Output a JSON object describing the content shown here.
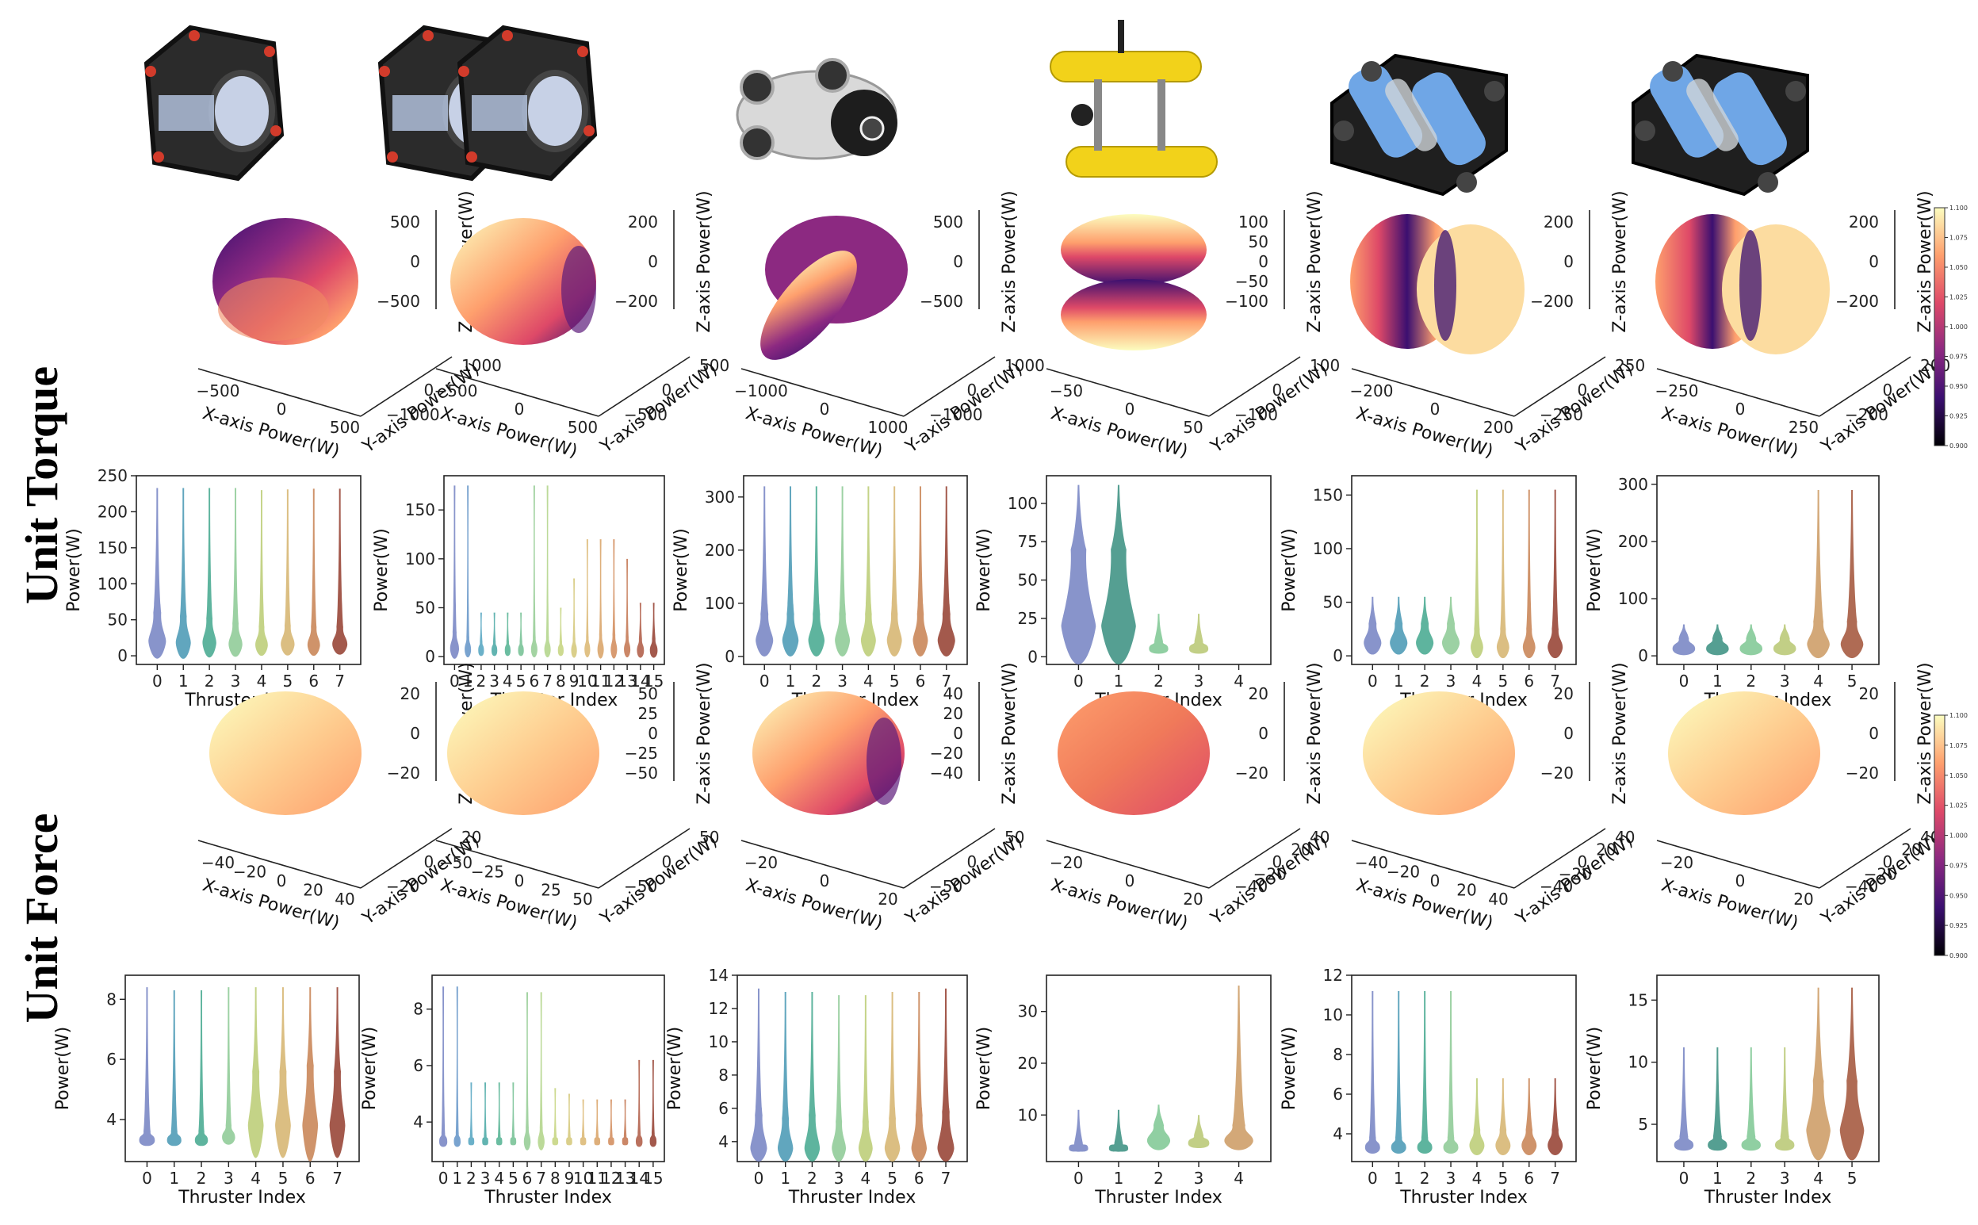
{
  "row_labels": [
    "Unit Torque",
    "Unit Force"
  ],
  "robot_icons": [
    "cube-vehicle-icon",
    "double-cube-vehicle-icon",
    "white-rov-icon",
    "yellow-auv-icon",
    "bluerov-heavy-icon",
    "bluerov-icon"
  ],
  "colormap": {
    "stops": [
      "#000004",
      "#3b0f70",
      "#8c2981",
      "#de4968",
      "#fe9f6d",
      "#fcfdbf"
    ],
    "ticks": [
      "1.100",
      "1.075",
      "1.050",
      "1.025",
      "1.000",
      "0.975",
      "0.950",
      "0.925",
      "0.900"
    ]
  },
  "thruster_colors": {
    "4": [
      "#6b86c4",
      "#2f9a77",
      "#b7cf6a",
      "#d7a85a",
      "#a56d3a"
    ],
    "5": [
      "#6e7cc0",
      "#2f8a7a",
      "#77c48e",
      "#b4c56b",
      "#c9955a",
      "#9e4a2e"
    ],
    "6": [
      "#6e7cc0",
      "#2f8a7a",
      "#77c48e",
      "#b4c56b",
      "#c9955a",
      "#9e4a2e"
    ],
    "8": [
      "#6e7cc0",
      "#3e93b0",
      "#3aa489",
      "#86c78f",
      "#b7c96c",
      "#d3b067",
      "#c47b49",
      "#8f3424"
    ],
    "16": [
      "#6e7cc0",
      "#5b8fc4",
      "#4aa0bd",
      "#3fa3a0",
      "#4aaf8c",
      "#6dbd8d",
      "#8fc98e",
      "#add282",
      "#c2d277",
      "#d2c571",
      "#d9b36a",
      "#d79e5e",
      "#cf8552",
      "#c06c46",
      "#ab523a",
      "#8f3424"
    ]
  },
  "chart_data": [
    {
      "type": "surface3d",
      "row": "Unit Torque",
      "vehicle": 1,
      "pattern": "top-dark",
      "xlabel": "X-axis Power(W)",
      "ylabel": "Y-axis Power(W)",
      "zlabel": "Z-axis Power(W)",
      "xticks": [
        "−500",
        "0",
        "500"
      ],
      "yticks": [
        "1000",
        "0",
        "−1000"
      ],
      "zticks": [
        "500",
        "0",
        "−500"
      ]
    },
    {
      "type": "surface3d",
      "row": "Unit Torque",
      "vehicle": 2,
      "pattern": "right-dark",
      "xlabel": "X-axis Power(W)",
      "ylabel": "Y-axis Power(W)",
      "zlabel": "Z-axis Power(W)",
      "xticks": [
        "−500",
        "0",
        "500"
      ],
      "yticks": [
        "500",
        "0",
        "−500"
      ],
      "zticks": [
        "200",
        "0",
        "−200"
      ]
    },
    {
      "type": "surface3d",
      "row": "Unit Torque",
      "vehicle": 3,
      "pattern": "lobes-diagonal",
      "xlabel": "X-axis Power(W)",
      "ylabel": "Y-axis Power(W)",
      "zlabel": "Z-axis Power(W)",
      "xticks": [
        "−1000",
        "0",
        "1000"
      ],
      "yticks": [
        "1000",
        "0",
        "−1000"
      ],
      "zticks": [
        "500",
        "0",
        "−500"
      ]
    },
    {
      "type": "surface3d",
      "row": "Unit Torque",
      "vehicle": 4,
      "pattern": "pinched-horizontal",
      "xlabel": "X-axis Power(W)",
      "ylabel": "Y-axis Power(W)",
      "zlabel": "Z-axis Power(W)",
      "xticks": [
        "−50",
        "0",
        "50"
      ],
      "yticks": [
        "100",
        "0",
        "−100"
      ],
      "zticks": [
        "100",
        "50",
        "0",
        "−50",
        "−100"
      ]
    },
    {
      "type": "surface3d",
      "row": "Unit Torque",
      "vehicle": 5,
      "pattern": "lobes-split",
      "xlabel": "X-axis Power(W)",
      "ylabel": "Y-axis Power(W)",
      "zlabel": "Z-axis Power(W)",
      "xticks": [
        "−200",
        "0",
        "200"
      ],
      "yticks": [
        "250",
        "0",
        "−250"
      ],
      "zticks": [
        "200",
        "0",
        "−200"
      ]
    },
    {
      "type": "surface3d",
      "row": "Unit Torque",
      "vehicle": 6,
      "pattern": "lobes-split-wide",
      "xlabel": "X-axis Power(W)",
      "ylabel": "Y-axis Power(W)",
      "zlabel": "Z-axis Power(W)",
      "xticks": [
        "−250",
        "0",
        "250"
      ],
      "yticks": [
        "200",
        "0",
        "−200"
      ],
      "zticks": [
        "200",
        "0",
        "−200"
      ]
    },
    {
      "type": "violin",
      "row": "Unit Torque",
      "vehicle": 1,
      "xlabel": "Thruster Index",
      "ylabel": "Power(W)",
      "categories": [
        "0",
        "1",
        "2",
        "3",
        "4",
        "5",
        "6",
        "7"
      ],
      "yticks": [
        0,
        50,
        100,
        150,
        200,
        250
      ],
      "ylim": [
        -12,
        250
      ],
      "max": [
        233,
        233,
        233,
        233,
        230,
        231,
        232,
        232
      ],
      "median": [
        60,
        55,
        52,
        45,
        40,
        42,
        40,
        40
      ],
      "q1": [
        20,
        18,
        18,
        16,
        15,
        16,
        15,
        16
      ],
      "widths": [
        0.7,
        0.6,
        0.55,
        0.55,
        0.5,
        0.55,
        0.5,
        0.6
      ]
    },
    {
      "type": "violin",
      "row": "Unit Torque",
      "vehicle": 2,
      "xlabel": "Thruster Index",
      "ylabel": "Power(W)",
      "categories": [
        "0",
        "1",
        "2",
        "3",
        "4",
        "5",
        "6",
        "7",
        "8",
        "9",
        "10",
        "11",
        "12",
        "13",
        "14",
        "15"
      ],
      "yticks": [
        0,
        50,
        100,
        150
      ],
      "ylim": [
        -8,
        185
      ],
      "max": [
        175,
        175,
        45,
        45,
        45,
        45,
        175,
        175,
        50,
        80,
        120,
        120,
        120,
        100,
        55,
        55
      ],
      "median": [
        25,
        20,
        15,
        15,
        15,
        15,
        20,
        20,
        15,
        18,
        20,
        22,
        22,
        20,
        18,
        18
      ],
      "q1": [
        8,
        7,
        6,
        6,
        6,
        6,
        7,
        7,
        6,
        6,
        7,
        7,
        7,
        7,
        6,
        6
      ],
      "widths": [
        0.7,
        0.5,
        0.45,
        0.45,
        0.45,
        0.45,
        0.5,
        0.5,
        0.45,
        0.45,
        0.45,
        0.5,
        0.5,
        0.5,
        0.55,
        0.6
      ]
    },
    {
      "type": "violin",
      "row": "Unit Torque",
      "vehicle": 3,
      "xlabel": "Thruster Index",
      "ylabel": "Power(W)",
      "categories": [
        "0",
        "1",
        "2",
        "3",
        "4",
        "5",
        "6",
        "7"
      ],
      "yticks": [
        0,
        100,
        200,
        300
      ],
      "ylim": [
        -15,
        340
      ],
      "max": [
        320,
        320,
        320,
        320,
        320,
        320,
        320,
        320
      ],
      "median": [
        80,
        80,
        80,
        80,
        80,
        80,
        80,
        80
      ],
      "q1": [
        30,
        30,
        30,
        30,
        30,
        30,
        30,
        30
      ],
      "widths": [
        0.7,
        0.65,
        0.65,
        0.6,
        0.6,
        0.6,
        0.6,
        0.7
      ]
    },
    {
      "type": "violin",
      "row": "Unit Torque",
      "vehicle": 4,
      "xlabel": "Thruster Index",
      "ylabel": "Power(W)",
      "categories": [
        "0",
        "1",
        "2",
        "3",
        "4"
      ],
      "yticks": [
        0,
        25,
        50,
        75,
        100
      ],
      "ylim": [
        -5,
        118
      ],
      "max": [
        112,
        112,
        28,
        28,
        0
      ],
      "median": [
        70,
        70,
        10,
        10,
        0
      ],
      "q1": [
        20,
        20,
        5,
        5,
        0
      ],
      "widths": [
        0.9,
        0.9,
        0.5,
        0.5,
        0
      ]
    },
    {
      "type": "violin",
      "row": "Unit Torque",
      "vehicle": 5,
      "xlabel": "Thruster Index",
      "ylabel": "Power(W)",
      "categories": [
        "0",
        "1",
        "2",
        "3",
        "4",
        "5",
        "6",
        "7"
      ],
      "yticks": [
        0,
        50,
        100,
        150
      ],
      "ylim": [
        -8,
        168
      ],
      "max": [
        55,
        55,
        55,
        55,
        155,
        155,
        155,
        155
      ],
      "median": [
        30,
        30,
        30,
        30,
        25,
        25,
        25,
        25
      ],
      "q1": [
        12,
        12,
        12,
        12,
        8,
        8,
        8,
        8
      ],
      "widths": [
        0.7,
        0.7,
        0.7,
        0.7,
        0.5,
        0.5,
        0.5,
        0.6
      ]
    },
    {
      "type": "violin",
      "row": "Unit Torque",
      "vehicle": 6,
      "xlabel": "Thruster Index",
      "ylabel": "Power(W)",
      "categories": [
        "0",
        "1",
        "2",
        "3",
        "4",
        "5"
      ],
      "yticks": [
        0,
        100,
        200,
        300
      ],
      "ylim": [
        -15,
        315
      ],
      "max": [
        55,
        55,
        55,
        55,
        290,
        290
      ],
      "median": [
        30,
        30,
        30,
        30,
        60,
        60
      ],
      "q1": [
        12,
        12,
        12,
        12,
        20,
        20
      ],
      "widths": [
        0.7,
        0.7,
        0.7,
        0.7,
        0.7,
        0.7
      ]
    },
    {
      "type": "surface3d",
      "row": "Unit Force",
      "vehicle": 1,
      "pattern": "light-sphere",
      "xlabel": "X-axis Power(W)",
      "ylabel": "Y-axis Power(W)",
      "zlabel": "Z-axis Power(W)",
      "xticks": [
        "−40",
        "−20",
        "0",
        "20",
        "40"
      ],
      "yticks": [
        "20",
        "0",
        "−20"
      ],
      "zticks": [
        "20",
        "0",
        "−20"
      ]
    },
    {
      "type": "surface3d",
      "row": "Unit Force",
      "vehicle": 2,
      "pattern": "light-sphere",
      "xlabel": "X-axis Power(W)",
      "ylabel": "Y-axis Power(W)",
      "zlabel": "Z-axis Power(W)",
      "xticks": [
        "−50",
        "−25",
        "0",
        "25",
        "50"
      ],
      "yticks": [
        "50",
        "0",
        "−50"
      ],
      "zticks": [
        "50",
        "25",
        "0",
        "−25",
        "−50"
      ]
    },
    {
      "type": "surface3d",
      "row": "Unit Force",
      "vehicle": 3,
      "pattern": "right-dark",
      "xlabel": "X-axis Power(W)",
      "ylabel": "Y-axis Power(W)",
      "zlabel": "Z-axis Power(W)",
      "xticks": [
        "−20",
        "0",
        "20"
      ],
      "yticks": [
        "50",
        "0",
        "−50"
      ],
      "zticks": [
        "40",
        "20",
        "0",
        "−20",
        "−40"
      ]
    },
    {
      "type": "surface3d",
      "row": "Unit Force",
      "vehicle": 4,
      "pattern": "warm-sphere",
      "xlabel": "X-axis Power(W)",
      "ylabel": "Y-axis Power(W)",
      "zlabel": "Z-axis Power(W)",
      "xticks": [
        "−20",
        "0",
        "20"
      ],
      "yticks": [
        "40",
        "20",
        "0",
        "−20",
        "−40"
      ],
      "zticks": [
        "20",
        "0",
        "−20"
      ]
    },
    {
      "type": "surface3d",
      "row": "Unit Force",
      "vehicle": 5,
      "pattern": "light-sphere",
      "xlabel": "X-axis Power(W)",
      "ylabel": "Y-axis Power(W)",
      "zlabel": "Z-axis Power(W)",
      "xticks": [
        "−40",
        "−20",
        "0",
        "20",
        "40"
      ],
      "yticks": [
        "40",
        "20",
        "0",
        "−20",
        "−40"
      ],
      "zticks": [
        "20",
        "0",
        "−20"
      ]
    },
    {
      "type": "surface3d",
      "row": "Unit Force",
      "vehicle": 6,
      "pattern": "light-sphere",
      "xlabel": "X-axis Power(W)",
      "ylabel": "Y-axis Power(W)",
      "zlabel": "Z-axis Power(W)",
      "xticks": [
        "−20",
        "0",
        "20"
      ],
      "yticks": [
        "40",
        "20",
        "0",
        "−20",
        "−40"
      ],
      "zticks": [
        "20",
        "0",
        "−20"
      ]
    },
    {
      "type": "violin",
      "row": "Unit Force",
      "vehicle": 1,
      "xlabel": "Thruster Index",
      "ylabel": "Power(W)",
      "categories": [
        "0",
        "1",
        "2",
        "3",
        "4",
        "5",
        "6",
        "7"
      ],
      "yticks": [
        4,
        6,
        8
      ],
      "ylim": [
        2.6,
        8.8
      ],
      "max": [
        8.4,
        8.3,
        8.3,
        8.4,
        8.4,
        8.4,
        8.4,
        8.4
      ],
      "median": [
        3.6,
        3.6,
        3.6,
        3.8,
        5.6,
        5.6,
        5.8,
        5.6
      ],
      "q1": [
        3.3,
        3.3,
        3.3,
        3.4,
        3.8,
        3.8,
        3.8,
        3.8
      ],
      "widths": [
        0.6,
        0.55,
        0.5,
        0.5,
        0.6,
        0.6,
        0.6,
        0.6
      ]
    },
    {
      "type": "violin",
      "row": "Unit Force",
      "vehicle": 2,
      "xlabel": "Thruster Index",
      "ylabel": "Power(W)",
      "categories": [
        "0",
        "1",
        "2",
        "3",
        "4",
        "5",
        "6",
        "7",
        "8",
        "9",
        "10",
        "11",
        "12",
        "13",
        "14",
        "15"
      ],
      "yticks": [
        4,
        6,
        8
      ],
      "ylim": [
        2.6,
        9.2
      ],
      "max": [
        8.8,
        8.8,
        5.4,
        5.4,
        5.4,
        5.4,
        8.6,
        8.6,
        5.2,
        5.0,
        4.8,
        4.8,
        4.8,
        4.8,
        6.2,
        6.2
      ],
      "median": [
        3.6,
        3.6,
        3.5,
        3.5,
        3.5,
        3.5,
        3.8,
        3.8,
        3.5,
        3.5,
        3.5,
        3.5,
        3.5,
        3.5,
        3.6,
        3.6
      ],
      "q1": [
        3.3,
        3.3,
        3.3,
        3.3,
        3.3,
        3.3,
        3.3,
        3.3,
        3.3,
        3.3,
        3.3,
        3.3,
        3.3,
        3.3,
        3.3,
        3.3
      ],
      "widths": [
        0.6,
        0.5,
        0.45,
        0.45,
        0.45,
        0.45,
        0.5,
        0.5,
        0.45,
        0.45,
        0.45,
        0.45,
        0.45,
        0.45,
        0.5,
        0.5
      ]
    },
    {
      "type": "violin",
      "row": "Unit Force",
      "vehicle": 3,
      "xlabel": "Thruster Index",
      "ylabel": "Power(W)",
      "categories": [
        "0",
        "1",
        "2",
        "3",
        "4",
        "5",
        "6",
        "7"
      ],
      "yticks": [
        4,
        6,
        8,
        10,
        12,
        14
      ],
      "ylim": [
        2.8,
        14
      ],
      "max": [
        13.2,
        13.0,
        13.0,
        12.8,
        12.8,
        13.0,
        13.0,
        13.2
      ],
      "median": [
        5.6,
        5.4,
        5.6,
        5.2,
        5.2,
        5.4,
        5.6,
        5.8
      ],
      "q1": [
        3.6,
        3.6,
        3.6,
        3.6,
        3.6,
        3.6,
        3.6,
        3.6
      ],
      "widths": [
        0.65,
        0.6,
        0.6,
        0.55,
        0.55,
        0.6,
        0.6,
        0.65
      ]
    },
    {
      "type": "violin",
      "row": "Unit Force",
      "vehicle": 4,
      "xlabel": "Thruster Index",
      "ylabel": "Power(W)",
      "categories": [
        "0",
        "1",
        "2",
        "3",
        "4"
      ],
      "yticks": [
        10,
        20,
        30
      ],
      "ylim": [
        1,
        37
      ],
      "max": [
        11,
        11,
        12,
        10,
        35
      ],
      "median": [
        4.5,
        4.5,
        8,
        6,
        8
      ],
      "q1": [
        3.5,
        3.5,
        5,
        4.5,
        5
      ],
      "widths": [
        0.5,
        0.5,
        0.6,
        0.55,
        0.75
      ]
    },
    {
      "type": "violin",
      "row": "Unit Force",
      "vehicle": 5,
      "xlabel": "Thruster Index",
      "ylabel": "Power(W)",
      "categories": [
        "0",
        "1",
        "2",
        "3",
        "4",
        "5",
        "6",
        "7"
      ],
      "yticks": [
        4,
        6,
        8,
        10,
        12
      ],
      "ylim": [
        2.6,
        12
      ],
      "max": [
        11.2,
        11.2,
        11.2,
        11.2,
        6.8,
        6.8,
        6.8,
        6.8
      ],
      "median": [
        3.8,
        3.8,
        3.8,
        3.8,
        4.2,
        4.2,
        4.2,
        4.2
      ],
      "q1": [
        3.3,
        3.3,
        3.3,
        3.3,
        3.4,
        3.4,
        3.4,
        3.4
      ],
      "widths": [
        0.6,
        0.6,
        0.6,
        0.6,
        0.6,
        0.6,
        0.6,
        0.6
      ]
    },
    {
      "type": "violin",
      "row": "Unit Force",
      "vehicle": 6,
      "xlabel": "Thruster Index",
      "ylabel": "Power(W)",
      "categories": [
        "0",
        "1",
        "2",
        "3",
        "4",
        "5"
      ],
      "yticks": [
        5,
        10,
        15
      ],
      "ylim": [
        2.0,
        17
      ],
      "max": [
        11.2,
        11.2,
        11.2,
        11.2,
        16.0,
        16.0
      ],
      "median": [
        4.0,
        4.0,
        4.0,
        4.0,
        8.5,
        8.5
      ],
      "q1": [
        3.3,
        3.3,
        3.3,
        3.3,
        4.5,
        4.5
      ],
      "widths": [
        0.6,
        0.6,
        0.6,
        0.6,
        0.75,
        0.75
      ]
    }
  ]
}
